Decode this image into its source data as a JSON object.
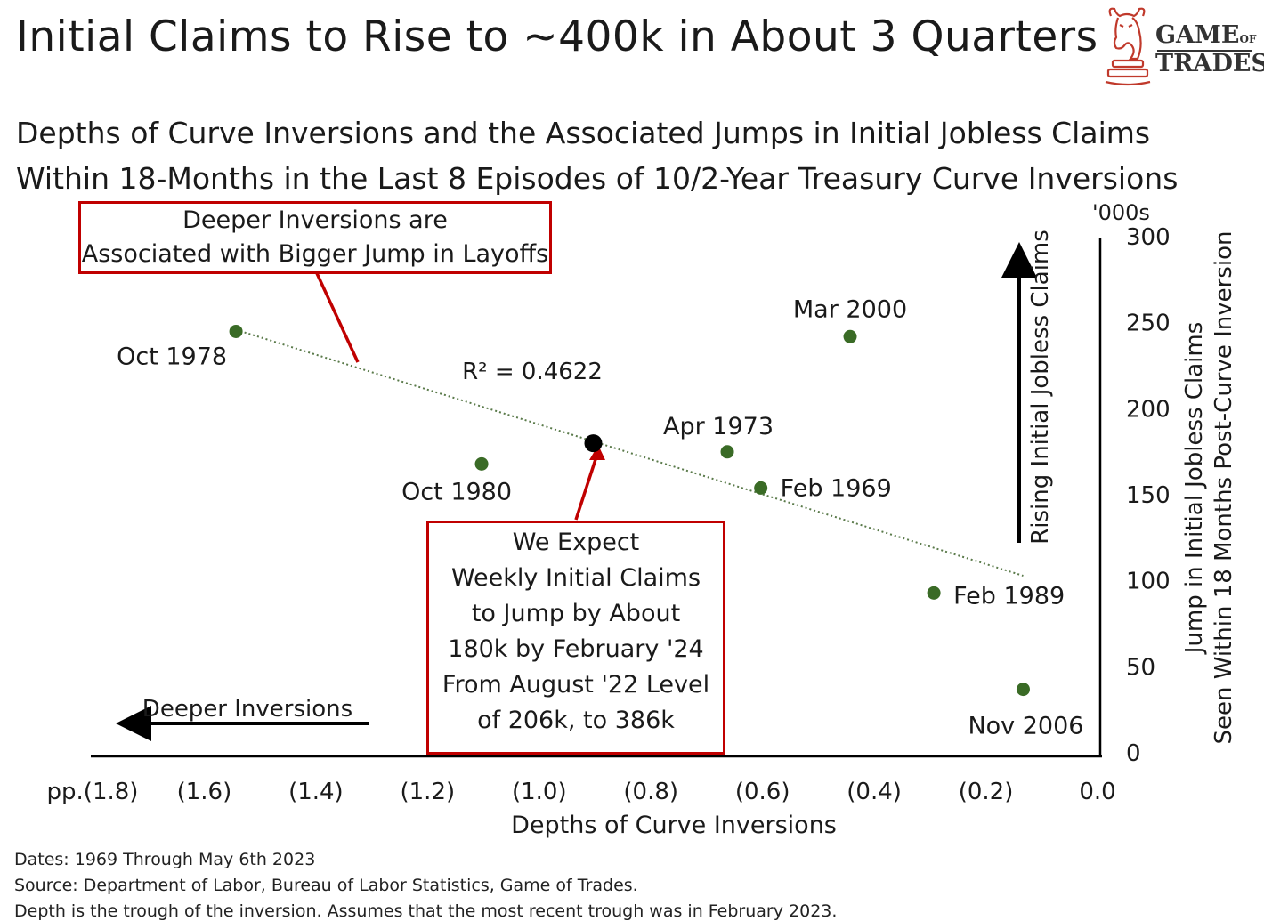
{
  "title": "Initial Claims to Rise to ~400k in About 3 Quarters",
  "logo": {
    "line1": "GAME",
    "line1_small": "OF",
    "line2": "TRADES"
  },
  "subtitle_line1": "Depths of Curve Inversions and the Associated Jumps in Initial Jobless Claims",
  "subtitle_line2": "Within 18-Months in the Last 8 Episodes of 10/2-Year Treasury Curve Inversions",
  "callout_top": {
    "line1": "Deeper Inversions are",
    "line2": "Associated with Bigger Jump in Layoffs"
  },
  "callout_bottom": {
    "lines": [
      "We Expect",
      "Weekly Initial Claims",
      "to Jump by About",
      "180k by February '24",
      "From August '22 Level",
      "of 206k, to 386k"
    ]
  },
  "footer": {
    "dates": "Dates: 1969 Through May 6th 2023",
    "source": "Source: Department of Labor, Bureau of Labor Statistics, Game of Trades.",
    "note": "Depth is the trough of the inversion. Assumes that the most recent trough was in February 2023."
  },
  "colors": {
    "point": "#3a6b26",
    "accent": "#c00000",
    "projection": "#000000",
    "trend": "#5a7a4a"
  },
  "chart_data": {
    "type": "scatter",
    "title": "Depths of Curve Inversions and the Associated Jumps in Initial Jobless Claims Within 18-Months in the Last 8 Episodes of 10/2-Year Treasury Curve Inversions",
    "xlabel": "Depths of Curve Inversions",
    "ylabel": "Jump in Initial Jobless Claims Seen Within 18 Months Post-Curve Inversion",
    "y_unit": "'000s",
    "xlim": [
      -1.8,
      0.0
    ],
    "ylim": [
      0,
      300
    ],
    "x_ticks": [
      {
        "value": -1.8,
        "label": "pp.(1.8)"
      },
      {
        "value": -1.6,
        "label": "(1.6)"
      },
      {
        "value": -1.4,
        "label": "(1.4)"
      },
      {
        "value": -1.2,
        "label": "(1.2)"
      },
      {
        "value": -1.0,
        "label": "(1.0)"
      },
      {
        "value": -0.8,
        "label": "(0.8)"
      },
      {
        "value": -0.6,
        "label": "(0.6)"
      },
      {
        "value": -0.4,
        "label": "(0.4)"
      },
      {
        "value": -0.2,
        "label": "(0.2)"
      },
      {
        "value": 0.0,
        "label": "0.0"
      }
    ],
    "y_ticks": [
      0,
      50,
      100,
      150,
      200,
      250,
      300
    ],
    "points": [
      {
        "label": "Oct 1978",
        "x": -1.54,
        "y": 247
      },
      {
        "label": "Oct 1980",
        "x": -1.1,
        "y": 170
      },
      {
        "label": "Apr 1973",
        "x": -0.66,
        "y": 177
      },
      {
        "label": "Feb 1969",
        "x": -0.6,
        "y": 156
      },
      {
        "label": "Mar 2000",
        "x": -0.44,
        "y": 244
      },
      {
        "label": "Feb 1989",
        "x": -0.29,
        "y": 95
      },
      {
        "label": "Nov 2006",
        "x": -0.13,
        "y": 39
      }
    ],
    "projection": {
      "x": -0.9,
      "y": 182
    },
    "trendline": {
      "x": [
        -1.54,
        -0.13
      ],
      "y": [
        248,
        105
      ],
      "r2_label": "R² = 0.4622"
    },
    "annotations": {
      "left_arrow": "Deeper Inversions",
      "up_arrow": "Rising Initial Jobless Claims"
    },
    "grid": false,
    "legend": "none"
  }
}
